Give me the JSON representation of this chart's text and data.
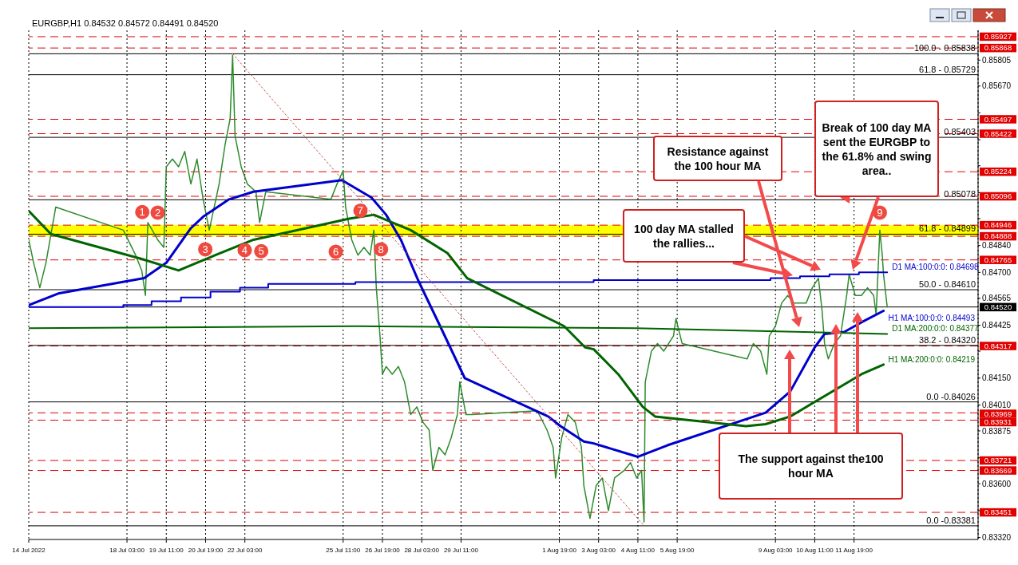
{
  "chart_data": {
    "type": "line",
    "title": "EURGBP,H1 0.84532 0.84572 0.84491 0.84520",
    "xlim": [
      "2022-07-14T19:00",
      "2022-08-16T00:00"
    ],
    "ylim": [
      0.8331,
      0.8596
    ],
    "grid": "x",
    "xticks": [
      {
        "value": "2022-07-14T19:00",
        "label": "14 Jul 2022"
      },
      {
        "value": "2022-07-18T03:00",
        "label": "18 Jul 03:00"
      },
      {
        "value": "2022-07-19T11:00",
        "label": "19 Jul 11:00"
      },
      {
        "value": "2022-07-20T19:00",
        "label": "20 Jul 19:00"
      },
      {
        "value": "2022-07-22T03:00",
        "label": "22 Jul 03:00"
      },
      {
        "value": "2022-07-25T11:00",
        "label": "25 Jul 11:00"
      },
      {
        "value": "2022-07-26T19:00",
        "label": "26 Jul 19:00"
      },
      {
        "value": "2022-07-28T03:00",
        "label": "28 Jul 03:00"
      },
      {
        "value": "2022-07-29T11:00",
        "label": "29 Jul 11:00"
      },
      {
        "value": "2022-08-01T19:00",
        "label": "1 Aug 19:00"
      },
      {
        "value": "2022-08-03T03:00",
        "label": "3 Aug 03:00"
      },
      {
        "value": "2022-08-04T11:00",
        "label": "4 Aug 11:00"
      },
      {
        "value": "2022-08-05T19:00",
        "label": "5 Aug 19:00"
      },
      {
        "value": "2022-08-09T03:00",
        "label": "9 Aug 03:00"
      },
      {
        "value": "2022-08-10T11:00",
        "label": "10 Aug 11:00"
      },
      {
        "value": "2022-08-11T19:00",
        "label": "11 Aug 19:00"
      }
    ],
    "yticks": [
      0.85805,
      {
        "value": 0.8567,
        "label": "0.85670"
      },
      {
        "value": 0.8553,
        "label": null
      },
      {
        "value": 0.8539,
        "label": null
      },
      {
        "value": 0.85255,
        "label": null
      },
      {
        "value": 0.85115,
        "label": null
      },
      {
        "value": 0.8498,
        "label": null
      },
      {
        "value": 0.8484,
        "label": "0.84840"
      },
      {
        "value": 0.847,
        "label": "0.84700"
      },
      0.84565,
      0.84425,
      {
        "value": 0.8429,
        "label": null
      },
      {
        "value": 0.8415,
        "label": "0.84150"
      },
      {
        "value": 0.8401,
        "label": "0.84010"
      },
      0.83875,
      {
        "value": 0.83735,
        "label": null
      },
      {
        "value": 0.836,
        "label": "0.83600"
      },
      {
        "value": 0.8346,
        "label": null
      },
      {
        "value": 0.8332,
        "label": "0.83320"
      }
    ],
    "series": [
      {
        "color": "#2e8b2e",
        "x": [
          "2022-07-14T19:00",
          "2022-07-14T23:00",
          "2022-07-15T04:00",
          "2022-07-15T09:00",
          "2022-07-15T17:00",
          "2022-07-18T00:00",
          "2022-07-18T10:00",
          "2022-07-18T15:00",
          "2022-07-18T18:00",
          "2022-07-18T20:00",
          "2022-07-19T04:00",
          "2022-07-19T09:00",
          "2022-07-19T11:00",
          "2022-07-19T16:00",
          "2022-07-19T21:00",
          "2022-07-20T02:00",
          "2022-07-20T07:00",
          "2022-07-20T12:00",
          "2022-07-20T17:00",
          "2022-07-20T22:00",
          "2022-07-21T06:00",
          "2022-07-21T11:00",
          "2022-07-21T15:00",
          "2022-07-21T17:00",
          "2022-07-21T19:00",
          "2022-07-22T00:00",
          "2022-07-22T05:00",
          "2022-07-22T12:00",
          "2022-07-22T15:00",
          "2022-07-22T20:00",
          "2022-07-25T01:00",
          "2022-07-25T06:00",
          "2022-07-25T11:00",
          "2022-07-25T13:00",
          "2022-07-25T18:00",
          "2022-07-25T23:00",
          "2022-07-26T04:00",
          "2022-07-26T09:00",
          "2022-07-26T12:00",
          "2022-07-26T14:00",
          "2022-07-26T17:00",
          "2022-07-26T19:00",
          "2022-07-26T22:00",
          "2022-07-27T03:00",
          "2022-07-27T08:00",
          "2022-07-27T13:00",
          "2022-07-27T18:00",
          "2022-07-27T23:00",
          "2022-07-28T04:00",
          "2022-07-28T09:00",
          "2022-07-28T12:00",
          "2022-07-28T17:00",
          "2022-07-28T22:00",
          "2022-07-29T03:00",
          "2022-07-29T08:00",
          "2022-07-29T10:00",
          "2022-07-29T15:00",
          "2022-07-29T20:00",
          "2022-08-01T01:00",
          "2022-08-01T09:00",
          "2022-08-01T14:00",
          "2022-08-01T16:00",
          "2022-08-01T21:00",
          "2022-08-02T02:00",
          "2022-08-02T08:00",
          "2022-08-02T13:00",
          "2022-08-02T15:00",
          "2022-08-02T20:00",
          "2022-08-03T01:00",
          "2022-08-03T06:00",
          "2022-08-03T11:00",
          "2022-08-03T16:00",
          "2022-08-04T00:00",
          "2022-08-04T05:00",
          "2022-08-04T10:00",
          "2022-08-04T14:00",
          "2022-08-04T16:00",
          "2022-08-04T17:00",
          "2022-08-04T22:00",
          "2022-08-05T03:00",
          "2022-08-05T08:00",
          "2022-08-05T16:00",
          "2022-08-05T18:00",
          "2022-08-05T23:00",
          "2022-08-08T04:00",
          "2022-08-08T09:00",
          "2022-08-08T15:00",
          "2022-08-08T20:00",
          "2022-08-08T22:00",
          "2022-08-09T03:00",
          "2022-08-09T08:00",
          "2022-08-09T13:00",
          "2022-08-09T18:00",
          "2022-08-09T23:00",
          "2022-08-10T04:00",
          "2022-08-10T09:00",
          "2022-08-10T14:00",
          "2022-08-10T17:00",
          "2022-08-10T19:00",
          "2022-08-10T22:00",
          "2022-08-11T03:00",
          "2022-08-11T08:00",
          "2022-08-11T13:00",
          "2022-08-11T15:00",
          "2022-08-11T20:00",
          "2022-08-12T01:00",
          "2022-08-12T06:00",
          "2022-08-12T11:00",
          "2022-08-12T13:00",
          "2022-08-12T16:00",
          "2022-08-12T18:00",
          "2022-08-12T19:00",
          "2022-08-12T22:00"
        ],
        "values": [
          0.8487,
          0.8475,
          0.8462,
          0.8475,
          0.8504,
          0.8492,
          0.8479,
          0.8471,
          0.8458,
          0.8496,
          0.8487,
          0.8483,
          0.8525,
          0.8529,
          0.8525,
          0.8533,
          0.8516,
          0.8529,
          0.8508,
          0.8492,
          0.8516,
          0.8537,
          0.855,
          0.8583,
          0.8541,
          0.8525,
          0.8516,
          0.8512,
          0.8496,
          0.8512,
          0.8508,
          0.8516,
          0.8523,
          0.8504,
          0.8487,
          0.8479,
          0.8483,
          0.8479,
          0.8492,
          0.8462,
          0.8437,
          0.8417,
          0.8421,
          0.8417,
          0.8421,
          0.8413,
          0.8396,
          0.84,
          0.8392,
          0.8388,
          0.8367,
          0.8379,
          0.8375,
          0.8384,
          0.8396,
          0.8413,
          0.8396,
          0.8396,
          0.8398,
          0.8388,
          0.8379,
          0.8363,
          0.8384,
          0.8396,
          0.8392,
          0.8379,
          0.8359,
          0.8342,
          0.8359,
          0.8363,
          0.8346,
          0.8363,
          0.8367,
          0.8371,
          0.8363,
          0.8367,
          0.834,
          0.8413,
          0.8429,
          0.8433,
          0.8429,
          0.8437,
          0.8446,
          0.8433,
          0.8425,
          0.8433,
          0.8429,
          0.8417,
          0.8437,
          0.8442,
          0.8454,
          0.8458,
          0.8454,
          0.8454,
          0.8454,
          0.8462,
          0.8467,
          0.845,
          0.8433,
          0.8425,
          0.8433,
          0.8437,
          0.8458,
          0.8469,
          0.8458,
          0.8458,
          0.8462,
          0.8458,
          0.8448,
          0.8492,
          0.8479,
          0.8469,
          0.8452
        ]
      },
      {
        "type": "line",
        "name": "H1 MA:100:0:0: 0.84493",
        "color": "#0000cd",
        "x": [
          "2022-07-14T19:00",
          "2022-07-15T19:00",
          "2022-07-18T17:00",
          "2022-07-19T11:00",
          "2022-07-20T07:00",
          "2022-07-20T17:00",
          "2022-07-21T14:00",
          "2022-07-22T10:00",
          "2022-07-25T10:00",
          "2022-07-26T10:00",
          "2022-07-26T22:00",
          "2022-07-27T10:00",
          "2022-07-28T00:00",
          "2022-07-28T18:00",
          "2022-07-29T14:00",
          "2022-08-01T10:00",
          "2022-08-01T20:00",
          "2022-08-02T15:00",
          "2022-08-02T23:00",
          "2022-08-04T11:00",
          "2022-08-05T11:00",
          "2022-08-08T19:00",
          "2022-08-09T15:00",
          "2022-08-10T11:00",
          "2022-08-10T19:00",
          "2022-08-11T11:00",
          "2022-08-12T01:00",
          "2022-08-12T19:00"
        ],
        "values": [
          0.8453,
          0.8459,
          0.8467,
          0.8475,
          0.8493,
          0.8499,
          0.8508,
          0.8512,
          0.8518,
          0.8509,
          0.85,
          0.8487,
          0.8466,
          0.8442,
          0.8415,
          0.8395,
          0.839,
          0.8382,
          0.8381,
          0.8374,
          0.838,
          0.8397,
          0.8408,
          0.8431,
          0.8438,
          0.8439,
          0.8444,
          0.845
        ]
      },
      {
        "type": "step",
        "name": "D1 MA:100:0:0: 0.84698",
        "color": "#0000cd",
        "x": [
          "2022-07-14T19:00",
          "2022-07-18T00:00",
          "2022-07-18T23:00",
          "2022-07-19T23:00",
          "2022-07-20T23:00",
          "2022-07-21T23:00",
          "2022-07-22T22:00",
          "2022-07-25T21:00",
          "2022-08-02T23:00",
          "2022-08-05T23:00",
          "2022-08-08T23:00",
          "2022-08-09T23:00",
          "2022-08-10T23:00",
          "2022-08-11T23:00",
          "2022-08-12T22:00"
        ],
        "values": [
          0.8452,
          0.8453,
          0.8455,
          0.8457,
          0.846,
          0.8462,
          0.8464,
          0.8465,
          0.8466,
          0.8466,
          0.8467,
          0.8468,
          0.8469,
          0.847,
          0.847
        ]
      },
      {
        "type": "line",
        "name": "H1 MA:200:0:0: 0.84219",
        "color": "#006400",
        "x": [
          "2022-07-14T19:00",
          "2022-07-15T13:00",
          "2022-07-18T15:00",
          "2022-07-19T21:00",
          "2022-07-21T03:00",
          "2022-07-22T10:00",
          "2022-07-25T16:00",
          "2022-07-26T12:00",
          "2022-07-27T18:00",
          "2022-07-29T00:00",
          "2022-07-29T16:00",
          "2022-08-01T23:00",
          "2022-08-02T16:00",
          "2022-08-02T23:00",
          "2022-08-03T19:00",
          "2022-08-04T15:00",
          "2022-08-05T01:00",
          "2022-08-08T03:00",
          "2022-08-08T19:00",
          "2022-08-09T15:00",
          "2022-08-12T01:00",
          "2022-08-12T19:00"
        ],
        "values": [
          0.8502,
          0.849,
          0.8477,
          0.8471,
          0.8479,
          0.8487,
          0.8498,
          0.85,
          0.8492,
          0.848,
          0.8467,
          0.8442,
          0.8431,
          0.843,
          0.8417,
          0.84,
          0.8395,
          0.839,
          0.8391,
          0.8395,
          0.8417,
          0.8422
        ]
      },
      {
        "type": "line",
        "name": "D1 MA:200:0:0: 0.84377",
        "color": "#006400",
        "x": [
          "2022-07-14T19:00",
          "2022-07-25T21:00",
          "2022-08-04T09:00",
          "2022-08-12T22:00"
        ],
        "values": [
          0.8441,
          0.8442,
          0.8441,
          0.8438
        ]
      },
      {
        "type": "line",
        "color": "#c0504d",
        "line_style": "dotted",
        "x": [
          "2022-07-21T17:00",
          "2022-08-04T16:00"
        ],
        "values": [
          0.85838,
          0.83381
        ]
      }
    ],
    "bands": [
      {
        "axis": "y",
        "from": 0.84888,
        "to": 0.84946,
        "color": "#ffff00"
      }
    ],
    "ref_lines": [
      {
        "axis": "y",
        "value": 0.85927,
        "label": "0.85927",
        "color": "#e00000",
        "line_style": "dashed"
      },
      {
        "axis": "y",
        "value": 0.85868,
        "label": "0.85868",
        "color": "#e00000",
        "line_style": "dashed"
      },
      {
        "axis": "y",
        "value": 0.85497,
        "label": "0.85497",
        "color": "#e00000",
        "line_style": "dashed"
      },
      {
        "axis": "y",
        "value": 0.85422,
        "label": "0.85422",
        "color": "#e00000",
        "line_style": "dashed"
      },
      {
        "axis": "y",
        "value": 0.85224,
        "label": "0.85224",
        "color": "#e00000",
        "line_style": "dashed"
      },
      {
        "axis": "y",
        "value": 0.85096,
        "label": "0.85096",
        "color": "#e00000",
        "line_style": "dashed"
      },
      {
        "axis": "y",
        "value": 0.84946,
        "label": "0.84946",
        "color": "#e00000",
        "line_style": "dashed"
      },
      {
        "axis": "y",
        "value": 0.84888,
        "label": "0.84888",
        "color": "#e00000",
        "line_style": "dashed"
      },
      {
        "axis": "y",
        "value": 0.84765,
        "label": "0.84765",
        "color": "#e00000",
        "line_style": "dashed"
      },
      {
        "axis": "y",
        "value": 0.84317,
        "label": "0.84317",
        "color": "#e00000",
        "line_style": "dashed"
      },
      {
        "axis": "y",
        "value": 0.83969,
        "label": "0.83969",
        "color": "#e00000",
        "line_style": "dashed"
      },
      {
        "axis": "y",
        "value": 0.83931,
        "label": "0.83931",
        "color": "#e00000",
        "line_style": "dashed"
      },
      {
        "axis": "y",
        "value": 0.83721,
        "label": "0.83721",
        "color": "#e00000",
        "line_style": "dashed"
      },
      {
        "axis": "y",
        "value": 0.83669,
        "label": "0.83669",
        "color": "#e00000",
        "line_style": "dashed"
      },
      {
        "axis": "y",
        "value": 0.83451,
        "label": "0.83451",
        "color": "#e00000",
        "line_style": "dashed"
      },
      {
        "axis": "y",
        "value": 0.8452,
        "label": "0.84520",
        "color": "#000000",
        "line_style": "solid"
      },
      {
        "axis": "y",
        "value": 0.85838
      },
      {
        "axis": "y",
        "value": 0.85729
      },
      {
        "axis": "y",
        "value": 0.85403,
        "label": "0.85403"
      },
      {
        "axis": "y",
        "value": 0.85078,
        "label": "0.85078"
      },
      {
        "axis": "y",
        "value": 0.84899
      },
      {
        "axis": "y",
        "value": 0.8461
      },
      {
        "axis": "y",
        "value": 0.8432
      },
      {
        "axis": "y",
        "value": 0.84026
      },
      {
        "axis": "y",
        "value": 0.83381
      }
    ],
    "annotations": [
      "100 day MA stalled the rallies...",
      "Resistance against the 100 hour MA",
      "Break of 100 day MA sent the EURGBP to the 61.8% and swing area..",
      "The support against the100 hour MA",
      {
        "text": "1",
        "x": "2022-07-18T20:00",
        "y": 0.8496
      },
      {
        "text": "2",
        "x": "2022-07-19T04:00",
        "y": 0.8487
      },
      {
        "text": "3",
        "x": "2022-07-20T22:00",
        "y": 0.8492
      },
      {
        "text": "4",
        "x": "2022-07-22T10:00",
        "y": 0.8487
      },
      {
        "text": "5",
        "x": "2022-07-22T15:00",
        "y": 0.8496
      },
      {
        "text": "6",
        "x": "2022-07-25T18:00",
        "y": 0.8487
      },
      {
        "text": "7",
        "x": "2022-07-25T16:00",
        "y": 0.8498
      },
      {
        "text": "8",
        "x": "2022-07-26T12:00",
        "y": 0.8492
      },
      {
        "text": "9",
        "x": "2022-08-12T16:00",
        "y": 0.8492
      },
      {
        "text": "100.0 - 0.85838",
        "y": 0.85838
      },
      {
        "text": "61.8 - 0.85729",
        "y": 0.85729
      },
      {
        "text": "61.8 - 0.84899",
        "y": 0.84899
      },
      {
        "text": "50.0 - 0.84610",
        "y": 0.8461
      },
      {
        "text": "38.2 - 0.84320",
        "y": 0.8432
      },
      {
        "text": "0.0 -0.84026",
        "y": 0.84026
      },
      {
        "text": "0.0 -0.83381",
        "y": 0.83381
      }
    ]
  }
}
